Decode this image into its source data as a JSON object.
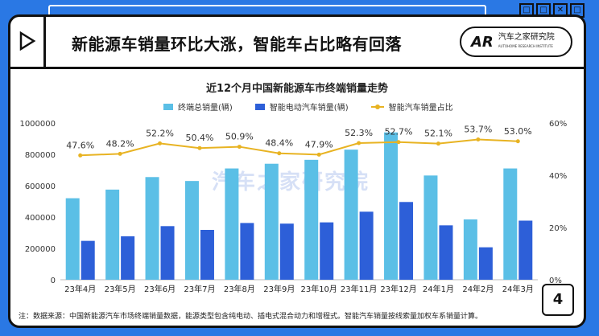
{
  "header": {
    "title": "新能源车销量环比大涨，智能车占比略有回落",
    "logo_mark": "AR",
    "logo_name": "汽车之家研究院",
    "logo_sub": "AUTOHOME RESEARCH INSTITUTE",
    "page_number": "4"
  },
  "window_buttons": [
    "□",
    "□",
    "✕",
    "□"
  ],
  "watermark": "汽车之家研究院",
  "footnote": "注：数据来源：中国新能源汽车市场终端销量数据，能源类型包含纯电动、插电式混合动力和增程式。智能汽车销量按线索量加权车系销量计算。",
  "colors": {
    "total_bar": "#5bbfe6",
    "smart_bar": "#2d5fd8",
    "share_line": "#e8b322"
  },
  "chart_data": {
    "type": "bar",
    "title": "近12个月中国新能源车市终端销量走势",
    "categories": [
      "23年4月",
      "23年5月",
      "23年6月",
      "23年7月",
      "23年8月",
      "23年9月",
      "23年10月",
      "23年11月",
      "23年12月",
      "24年1月",
      "24年2月",
      "24年3月"
    ],
    "series": [
      {
        "name": "终端总销量(辆)",
        "type": "bar",
        "axis": "left",
        "values": [
          520000,
          575000,
          655000,
          630000,
          710000,
          740000,
          765000,
          830000,
          940000,
          665000,
          385000,
          710000
        ]
      },
      {
        "name": "智能电动汽车销量(辆)",
        "type": "bar",
        "axis": "left",
        "values": [
          248000,
          277000,
          342000,
          318000,
          362000,
          358000,
          366000,
          434000,
          496000,
          347000,
          207000,
          377000
        ]
      },
      {
        "name": "智能汽车销量占比",
        "type": "line",
        "axis": "right",
        "values": [
          47.6,
          48.2,
          52.2,
          50.4,
          50.9,
          48.4,
          47.9,
          52.3,
          52.7,
          52.1,
          53.7,
          53.0
        ],
        "labels": [
          "47.6%",
          "48.2%",
          "52.2%",
          "50.4%",
          "50.9%",
          "48.4%",
          "47.9%",
          "52.3%",
          "52.7%",
          "52.1%",
          "53.7%",
          "53.0%"
        ]
      }
    ],
    "ylim": [
      0,
      1000000
    ],
    "yticks": [
      0,
      200000,
      400000,
      600000,
      800000,
      1000000
    ],
    "ytick_labels": [
      "0",
      "200000",
      "400000",
      "600000",
      "800000",
      "1000000"
    ],
    "y2lim": [
      0,
      60
    ],
    "y2ticks": [
      0,
      20,
      40,
      60
    ],
    "y2tick_labels": [
      "0%",
      "20%",
      "40%",
      "60%"
    ],
    "legend_position": "top-center"
  }
}
